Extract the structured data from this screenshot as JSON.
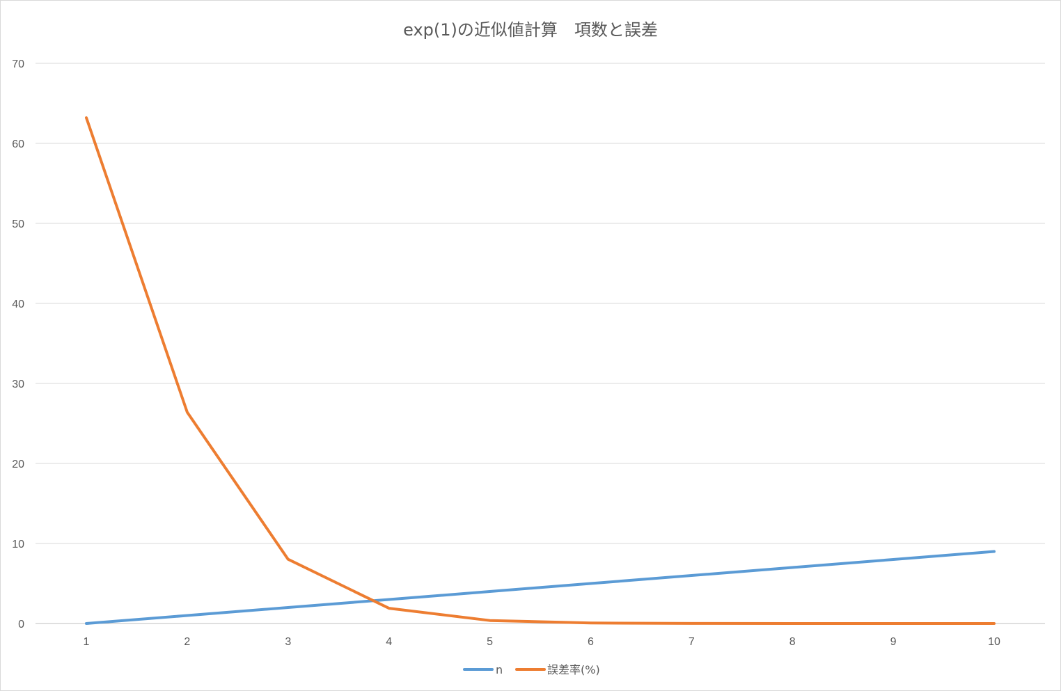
{
  "chart_data": {
    "type": "line",
    "title": "exp(1)の近似値計算　項数と誤差",
    "categories": [
      "1",
      "2",
      "3",
      "4",
      "5",
      "6",
      "7",
      "8",
      "9",
      "10"
    ],
    "series": [
      {
        "name": "n",
        "color": "#5b9bd5",
        "values": [
          0,
          1,
          2,
          3,
          4,
          5,
          6,
          7,
          8,
          9
        ]
      },
      {
        "name": "誤差率(%)",
        "color": "#ed7d31",
        "values": [
          63.2,
          26.4,
          8.03,
          1.9,
          0.37,
          0.06,
          0.01,
          0.0,
          0.0,
          0.0
        ]
      }
    ],
    "ylim": [
      0,
      70
    ],
    "yticks": [
      "0",
      "10",
      "20",
      "30",
      "40",
      "50",
      "60",
      "70"
    ],
    "grid": true,
    "legend": "bottom"
  }
}
